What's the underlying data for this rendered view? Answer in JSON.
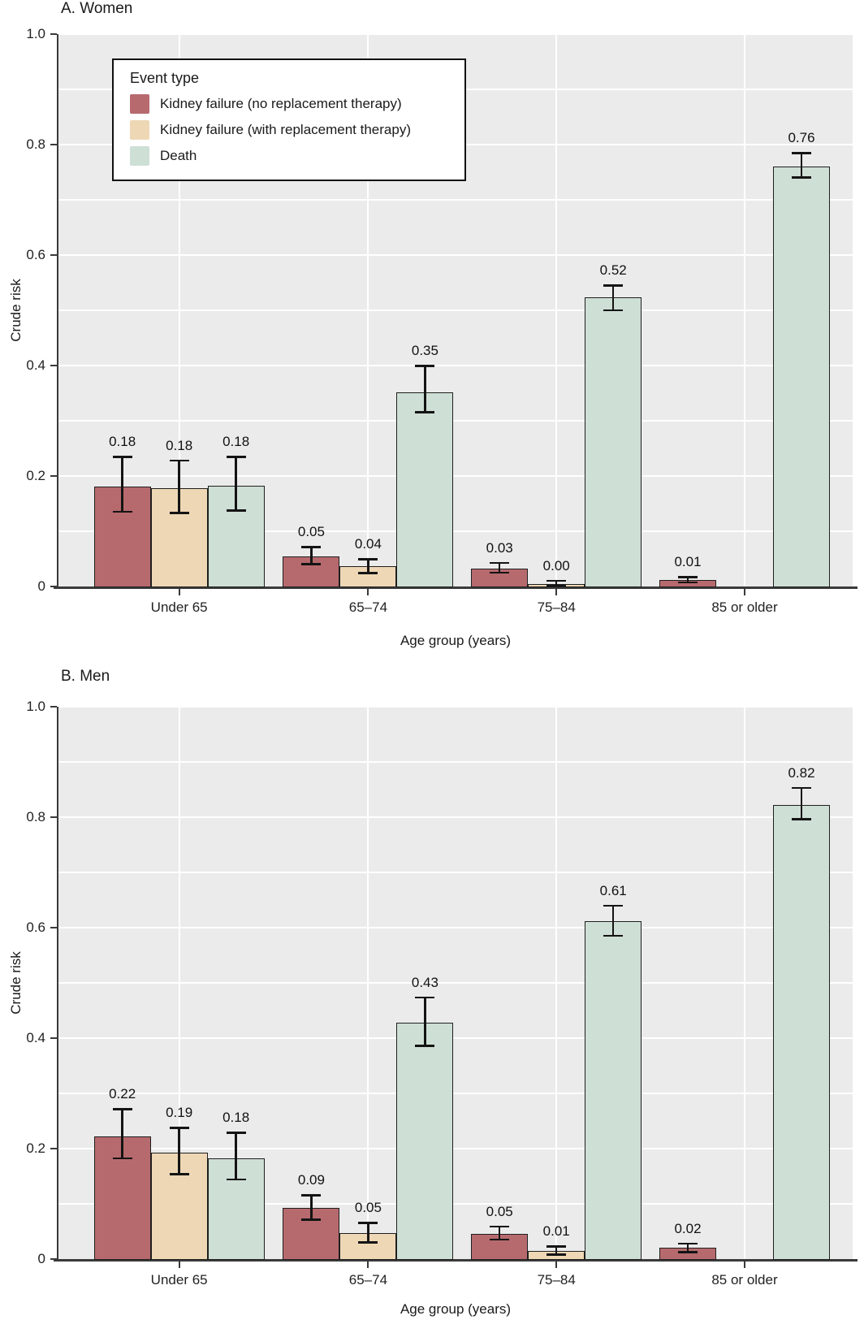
{
  "figure": {
    "background": "#ffffff",
    "plot_background": "#ebebeb",
    "gridline_color": "#ffffff",
    "bar_border_color": "#1f1f1f",
    "error_bar_color": "#141414"
  },
  "chart_data": {
    "type": "bar",
    "categories": [
      "Under 65",
      "65–74",
      "75–84",
      "85 or older"
    ],
    "xlabel": "Age group (years)",
    "ylabel": "Crude risk",
    "ylim": [
      0,
      1.0
    ],
    "yticks": [
      0,
      0.2,
      0.4,
      0.6,
      0.8,
      1.0
    ],
    "ytick_labels": [
      "0",
      "0.2",
      "0.4",
      "0.6",
      "0.8",
      "1.0"
    ],
    "grid_step": 0.1,
    "grid": "on",
    "legend": {
      "title": "Event type",
      "position": "top-left",
      "entries": [
        {
          "label": "Kidney failure (no replacement therapy)",
          "color": "#b76a6e"
        },
        {
          "label": "Kidney failure (with replacement therapy)",
          "color": "#eed7b5"
        },
        {
          "label": "Death",
          "color": "#cedfd5"
        }
      ]
    },
    "error_bars": "95% interval whiskers with caps",
    "panels": [
      {
        "title": "A. Women",
        "series": [
          {
            "key": "kidney-failure-no-replacement-therapy",
            "points": [
              {
                "label": "0.18",
                "height": 0.181,
                "lo": 0.135,
                "hi": 0.235
              },
              {
                "label": "0.05",
                "height": 0.055,
                "lo": 0.04,
                "hi": 0.072
              },
              {
                "label": "0.03",
                "height": 0.033,
                "lo": 0.025,
                "hi": 0.043
              },
              {
                "label": "0.01",
                "height": 0.012,
                "lo": 0.007,
                "hi": 0.017
              }
            ]
          },
          {
            "key": "kidney-failure-with-replacement-therapy",
            "points": [
              {
                "label": "0.18",
                "height": 0.178,
                "lo": 0.133,
                "hi": 0.228
              },
              {
                "label": "0.04",
                "height": 0.037,
                "lo": 0.024,
                "hi": 0.05
              },
              {
                "label": "0.00",
                "height": 0.004,
                "lo": 0.001,
                "hi": 0.011
              },
              null
            ]
          },
          {
            "key": "death",
            "points": [
              {
                "label": "0.18",
                "height": 0.182,
                "lo": 0.137,
                "hi": 0.235
              },
              {
                "label": "0.35",
                "height": 0.352,
                "lo": 0.315,
                "hi": 0.4
              },
              {
                "label": "0.52",
                "height": 0.523,
                "lo": 0.5,
                "hi": 0.545
              },
              {
                "label": "0.76",
                "height": 0.76,
                "lo": 0.74,
                "hi": 0.785
              }
            ]
          }
        ]
      },
      {
        "title": "B. Men",
        "series": [
          {
            "key": "kidney-failure-no-replacement-therapy",
            "points": [
              {
                "label": "0.22",
                "height": 0.222,
                "lo": 0.182,
                "hi": 0.272
              },
              {
                "label": "0.09",
                "height": 0.093,
                "lo": 0.071,
                "hi": 0.116
              },
              {
                "label": "0.05",
                "height": 0.046,
                "lo": 0.035,
                "hi": 0.059
              },
              {
                "label": "0.02",
                "height": 0.02,
                "lo": 0.012,
                "hi": 0.028
              }
            ]
          },
          {
            "key": "kidney-failure-with-replacement-therapy",
            "points": [
              {
                "label": "0.19",
                "height": 0.193,
                "lo": 0.153,
                "hi": 0.238
              },
              {
                "label": "0.05",
                "height": 0.047,
                "lo": 0.03,
                "hi": 0.066
              },
              {
                "label": "0.01",
                "height": 0.015,
                "lo": 0.008,
                "hi": 0.023
              },
              null
            ]
          },
          {
            "key": "death",
            "points": [
              {
                "label": "0.18",
                "height": 0.183,
                "lo": 0.144,
                "hi": 0.229
              },
              {
                "label": "0.43",
                "height": 0.428,
                "lo": 0.386,
                "hi": 0.474
              },
              {
                "label": "0.61",
                "height": 0.612,
                "lo": 0.585,
                "hi": 0.64
              },
              {
                "label": "0.82",
                "height": 0.822,
                "lo": 0.796,
                "hi": 0.853
              }
            ]
          }
        ]
      }
    ]
  }
}
